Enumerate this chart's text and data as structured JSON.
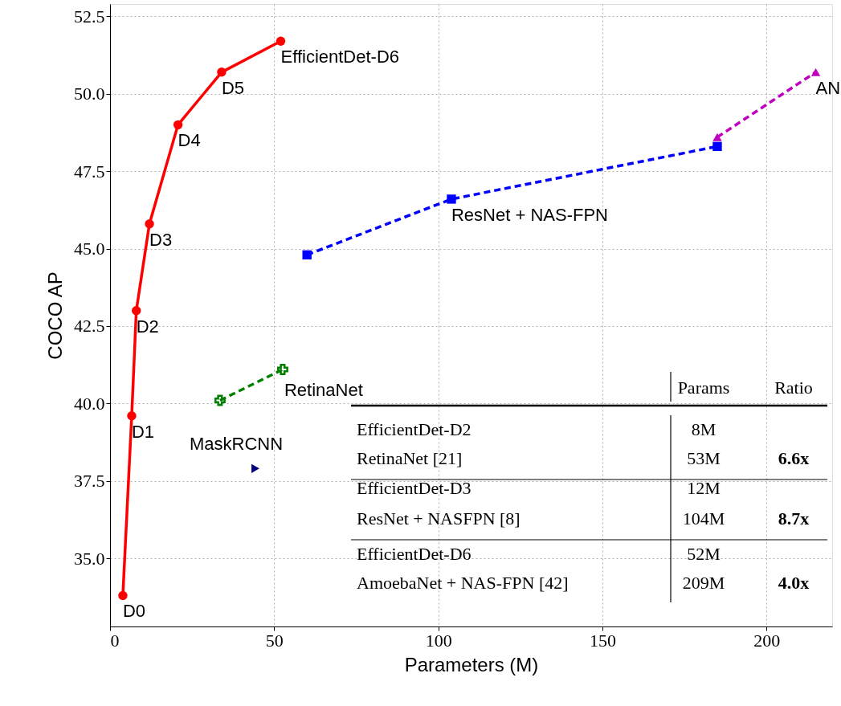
{
  "chart_data": {
    "type": "line",
    "xlabel": "Parameters (M)",
    "ylabel": "COCO AP",
    "xlim": [
      0,
      220
    ],
    "ylim": [
      32.8,
      52.9
    ],
    "xticks": [
      0,
      50,
      100,
      150,
      200
    ],
    "yticks": [
      {
        "value": 35,
        "label": "35.0"
      },
      {
        "value": 37.5,
        "label": "37.5"
      },
      {
        "value": 40,
        "label": "40.0"
      },
      {
        "value": 42.5,
        "label": "42.5"
      },
      {
        "value": 45,
        "label": "45.0"
      },
      {
        "value": 47.5,
        "label": "47.5"
      },
      {
        "value": 50,
        "label": "50.0"
      },
      {
        "value": 52.5,
        "label": "52.5"
      }
    ],
    "grid": true,
    "series": [
      {
        "color": "#ff0000",
        "marker": "circle",
        "line_style": "solid",
        "x": [
          3.9,
          6.6,
          8,
          12,
          20.7,
          34,
          52
        ],
        "values": [
          33.8,
          39.6,
          43.0,
          45.8,
          49.0,
          50.7,
          51.7
        ]
      },
      {
        "color": "#0000ff",
        "marker": "square",
        "line_style": "dashed",
        "x": [
          60,
          104,
          185
        ],
        "values": [
          44.8,
          46.6,
          48.3
        ]
      },
      {
        "color": "#bf00bf",
        "marker": "triangle",
        "line_style": "dashed",
        "x": [
          185,
          215
        ],
        "values": [
          48.6,
          50.7
        ]
      },
      {
        "color": "#008000",
        "marker": "cross",
        "line_style": "dashed",
        "x": [
          33.5,
          52.6
        ],
        "values": [
          40.1,
          41.1
        ]
      },
      {
        "type": "scatter",
        "color": "#000080",
        "marker": "triangle",
        "x": [
          44.3
        ],
        "values": [
          37.9
        ]
      }
    ],
    "annotations": [
      {
        "text": "D0",
        "x": 3.9,
        "y": 33.8
      },
      {
        "text": "D1",
        "x": 6.6,
        "y": 39.6
      },
      {
        "text": "D2",
        "x": 8,
        "y": 43.0
      },
      {
        "text": "D3",
        "x": 12,
        "y": 45.8
      },
      {
        "text": "D4",
        "x": 20.7,
        "y": 49.0
      },
      {
        "text": "D5",
        "x": 34,
        "y": 50.7
      },
      {
        "text": "EfficientDet-D6",
        "x": 52,
        "y": 51.7
      },
      {
        "text": "ResNet + NAS-FPN",
        "x": 104,
        "y": 46.6
      },
      {
        "text": "AN",
        "x": 215,
        "y": 50.7
      },
      {
        "text": "RetinaNet",
        "x": 52.6,
        "y": 41.1
      },
      {
        "text": "MaskRCNN",
        "x": 44.3,
        "y": 37.9
      },
      "Params",
      "Ratio",
      "EfficientDet-D2",
      "8M",
      "RetinaNet [21]",
      "53M",
      "6.6x",
      "EfficientDet-D3",
      "12M",
      "ResNet + NASFPN [8]",
      "104M",
      "8.7x",
      "EfficientDet-D6",
      "52M",
      "AmoebaNet + NAS-FPN [42]",
      "209M",
      "4.0x"
    ]
  }
}
